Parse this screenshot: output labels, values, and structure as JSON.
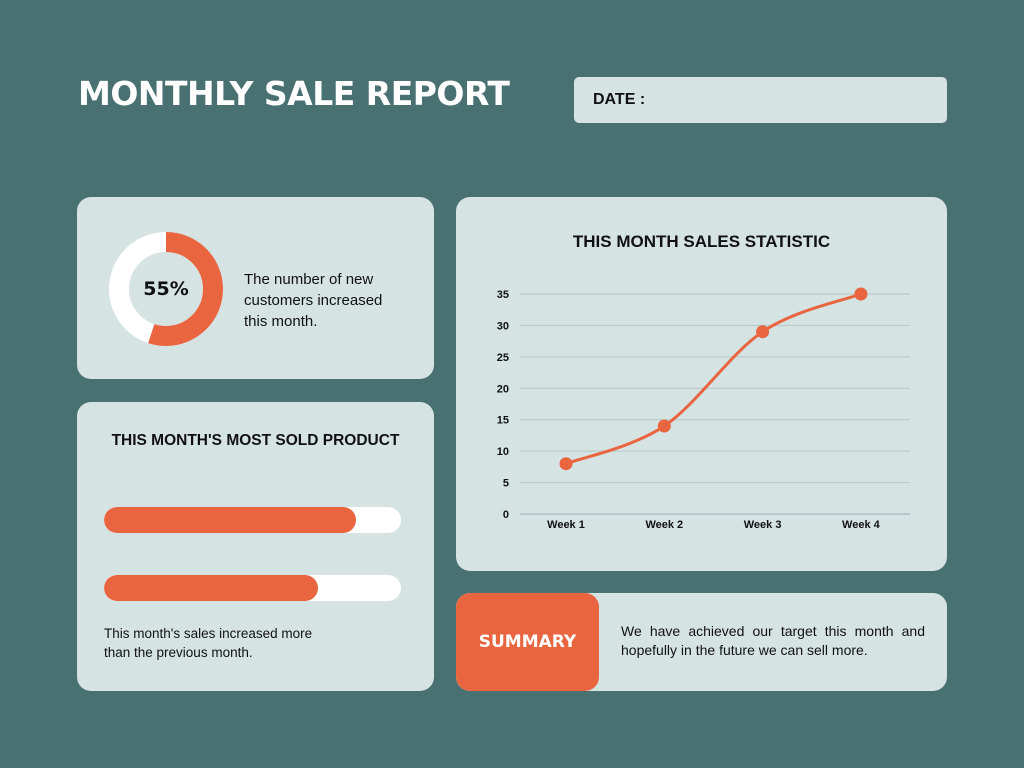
{
  "header": {
    "title": "MONTHLY SALE REPORT",
    "date_label": "DATE :"
  },
  "customers": {
    "percent_label": "55%",
    "percent_value": 55,
    "description": "The number of new customers increased this month.",
    "ring_color": "#e86540",
    "track_color": "#ffffff"
  },
  "product": {
    "title": "THIS MONTH'S MOST SOLD PRODUCT",
    "bars": [
      {
        "fraction": 0.85
      },
      {
        "fraction": 0.72
      }
    ],
    "description": "This month's sales increased more than the previous month."
  },
  "chart_data": {
    "type": "line",
    "title": "THIS MONTH SALES STATISTIC",
    "categories": [
      "Week 1",
      "Week 2",
      "Week 3",
      "Week 4"
    ],
    "series": [
      {
        "values": [
          8,
          14,
          29,
          35
        ],
        "color": "#e86540"
      }
    ],
    "ylim": [
      0,
      35
    ],
    "yticks": [
      0,
      5,
      10,
      15,
      20,
      25,
      30,
      35
    ],
    "xlabel": "",
    "ylabel": "",
    "grid": true,
    "smooth": true
  },
  "summary": {
    "label": "SUMMARY",
    "text": "We have achieved our target this month and hopefully in the future we can sell more."
  },
  "colors": {
    "background": "#4a7171",
    "card": "#d6e3e3",
    "accent": "#e86540"
  }
}
